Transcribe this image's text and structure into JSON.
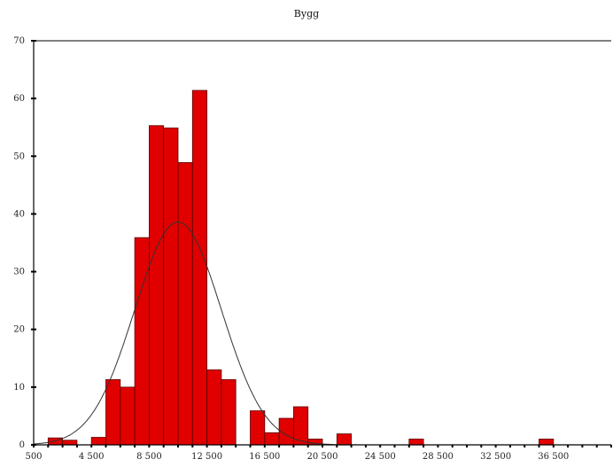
{
  "chart_data": {
    "type": "bar",
    "title": "Bygg",
    "xlabel": "",
    "ylabel": "",
    "xlim": [
      500,
      40500
    ],
    "ylim": [
      0,
      70
    ],
    "x_ticks": [
      500,
      4500,
      8500,
      12500,
      16500,
      20500,
      24500,
      28500,
      32500,
      36500
    ],
    "x_tick_labels": [
      "500",
      "4 500",
      "8 500",
      "12 500",
      "16 500",
      "20 500",
      "24 500",
      "28 500",
      "32 500",
      "36 500"
    ],
    "y_ticks": [
      0,
      10,
      20,
      30,
      40,
      50,
      60,
      70
    ],
    "y_tick_labels": [
      "0",
      "10",
      "20",
      "30",
      "40",
      "50",
      "60",
      "70"
    ],
    "bin_width": 1000,
    "bins": [
      {
        "start": 1500,
        "value": 1.2
      },
      {
        "start": 2500,
        "value": 0.8
      },
      {
        "start": 4500,
        "value": 1.3
      },
      {
        "start": 5500,
        "value": 11.3
      },
      {
        "start": 6500,
        "value": 10.0
      },
      {
        "start": 7500,
        "value": 35.9
      },
      {
        "start": 8500,
        "value": 55.3
      },
      {
        "start": 9500,
        "value": 54.9
      },
      {
        "start": 10500,
        "value": 48.9
      },
      {
        "start": 11500,
        "value": 61.4
      },
      {
        "start": 12500,
        "value": 13.0
      },
      {
        "start": 13500,
        "value": 11.3
      },
      {
        "start": 15500,
        "value": 5.9
      },
      {
        "start": 16500,
        "value": 2.1
      },
      {
        "start": 17500,
        "value": 4.6
      },
      {
        "start": 18500,
        "value": 6.6
      },
      {
        "start": 19500,
        "value": 1.0
      },
      {
        "start": 21500,
        "value": 1.9
      },
      {
        "start": 26500,
        "value": 1.0
      },
      {
        "start": 35500,
        "value": 1.0
      }
    ],
    "curve": {
      "type": "normal",
      "mean": 10500,
      "sd": 3000,
      "peak": 38.6
    },
    "colors": {
      "bar_fill": "#e00000",
      "bar_stroke": "#5a0000",
      "curve": "#333333",
      "axis": "#000000"
    },
    "grid": false,
    "legend": "none"
  }
}
